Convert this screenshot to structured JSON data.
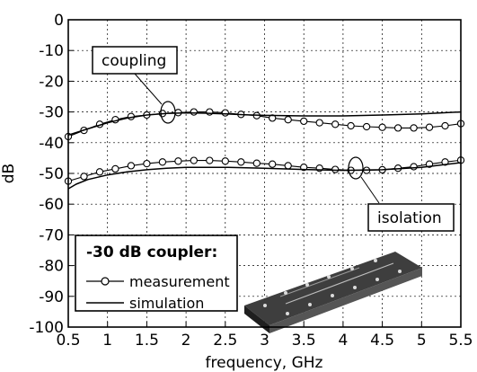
{
  "chart_data": {
    "type": "line",
    "xlabel": "frequency, GHz",
    "ylabel": "dB",
    "xlim": [
      0.5,
      5.5
    ],
    "ylim": [
      -100,
      0
    ],
    "xticks": [
      "0.5",
      "1",
      "1.5",
      "2",
      "2.5",
      "3",
      "3.5",
      "4",
      "4.5",
      "5",
      "5.5"
    ],
    "yticks": [
      "0",
      "-10",
      "-20",
      "-30",
      "-40",
      "-50",
      "-60",
      "-70",
      "-80",
      "-90",
      "-100"
    ],
    "grid": "dashed",
    "legend": {
      "title": "-30 dB coupler:",
      "placement": "bottom-left",
      "entries": [
        "measurement",
        "simulation"
      ]
    },
    "annotations": [
      {
        "text": "coupling",
        "points_to": {
          "x": 1.75,
          "y": -30.5
        }
      },
      {
        "text": "isolation",
        "points_to": {
          "x": 3.85,
          "y": -48.5
        }
      }
    ],
    "inset_image": "coupler-board-photo",
    "series": [
      {
        "style": "measurement",
        "curve": "coupling",
        "x": [
          0.5,
          0.7,
          0.9,
          1.1,
          1.3,
          1.5,
          1.7,
          1.9,
          2.1,
          2.3,
          2.5,
          2.7,
          2.9,
          3.1,
          3.3,
          3.5,
          3.7,
          3.9,
          4.1,
          4.3,
          4.5,
          4.7,
          4.9,
          5.1,
          5.3,
          5.5
        ],
        "y": [
          -38,
          -36,
          -34,
          -32.5,
          -31.5,
          -31,
          -30.5,
          -30.2,
          -30,
          -30,
          -30.3,
          -30.8,
          -31.2,
          -32,
          -32.5,
          -33,
          -33.5,
          -34,
          -34.5,
          -34.8,
          -35,
          -35.2,
          -35.2,
          -35,
          -34.5,
          -33.8
        ]
      },
      {
        "style": "simulation",
        "curve": "coupling",
        "x": [
          0.5,
          0.75,
          1.0,
          1.25,
          1.5,
          1.75,
          2.0,
          2.25,
          2.5,
          2.75,
          3.0,
          3.5,
          4.0,
          4.5,
          5.0,
          5.5
        ],
        "y": [
          -37.5,
          -35.5,
          -33.5,
          -32,
          -31,
          -30.5,
          -30.3,
          -30.4,
          -30.6,
          -30.9,
          -31.1,
          -31.3,
          -31.3,
          -31,
          -30.6,
          -30
        ]
      },
      {
        "style": "measurement",
        "curve": "isolation",
        "x": [
          0.5,
          0.7,
          0.9,
          1.1,
          1.3,
          1.5,
          1.7,
          1.9,
          2.1,
          2.3,
          2.5,
          2.7,
          2.9,
          3.1,
          3.3,
          3.5,
          3.7,
          3.9,
          4.1,
          4.3,
          4.5,
          4.7,
          4.9,
          5.1,
          5.3,
          5.5
        ],
        "y": [
          -52.5,
          -51,
          -49.5,
          -48.5,
          -47.5,
          -46.8,
          -46.3,
          -46,
          -45.8,
          -45.8,
          -46,
          -46.3,
          -46.7,
          -47,
          -47.5,
          -48,
          -48.3,
          -48.7,
          -49,
          -49,
          -48.8,
          -48.3,
          -47.8,
          -47,
          -46.3,
          -45.7
        ]
      },
      {
        "style": "simulation",
        "curve": "isolation",
        "x": [
          0.5,
          0.6,
          0.75,
          1.0,
          1.25,
          1.5,
          1.75,
          2.0,
          2.25,
          2.5,
          3.0,
          3.5,
          4.0,
          4.5,
          5.0,
          5.5
        ],
        "y": [
          -55,
          -53.5,
          -52,
          -50.5,
          -49.5,
          -48.8,
          -48.3,
          -48,
          -48,
          -48,
          -48.3,
          -48.7,
          -49,
          -48.8,
          -48,
          -46.5
        ]
      }
    ]
  }
}
